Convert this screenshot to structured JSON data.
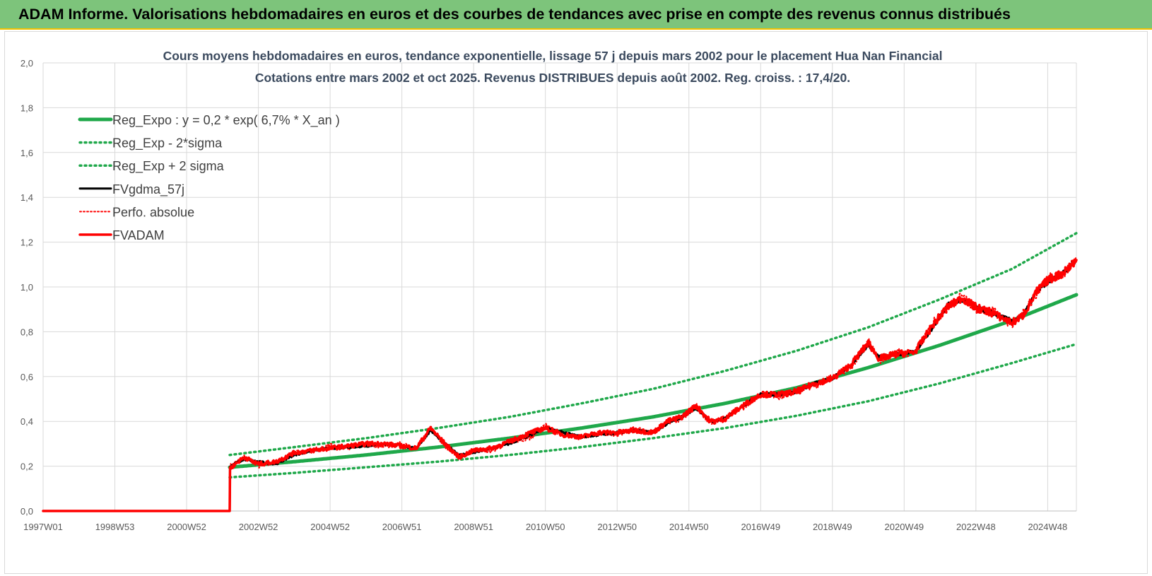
{
  "header": {
    "title": "ADAM Informe. Valorisations hebdomadaires en euros et des courbes de tendances avec prise en compte des revenus connus distribués"
  },
  "colors": {
    "header_bg": "#7dc47b",
    "header_border": "#f2c100",
    "trend_green": "#1fa84a",
    "band_green": "#1fa84a",
    "fvgdma_black": "#000000",
    "adam_red": "#ff0000"
  },
  "chart_data": {
    "type": "line",
    "title": "Cours moyens hebdomadaires en euros, tendance exponentielle, lissage 57 j depuis mars 2002 pour le placement Hua Nan Financial",
    "subtitle": "Cotations entre mars 2002 et oct 2025. Revenus DISTRIBUES depuis août 2002. Reg. croiss. : 17,4/20.",
    "xlabel": "",
    "ylabel": "",
    "x_range": [
      1997.0,
      2025.8
    ],
    "ylim": [
      0,
      2.0
    ],
    "y_ticks": [
      "0,0",
      "0,2",
      "0,4",
      "0,6",
      "0,8",
      "1,0",
      "1,2",
      "1,4",
      "1,6",
      "1,8",
      "2,0"
    ],
    "x_ticks": [
      {
        "x": 1997.0,
        "label": "1997W01"
      },
      {
        "x": 1999.0,
        "label": "1998W53"
      },
      {
        "x": 2001.0,
        "label": "2000W52"
      },
      {
        "x": 2003.0,
        "label": "2002W52"
      },
      {
        "x": 2005.0,
        "label": "2004W52"
      },
      {
        "x": 2007.0,
        "label": "2006W51"
      },
      {
        "x": 2009.0,
        "label": "2008W51"
      },
      {
        "x": 2011.0,
        "label": "2010W50"
      },
      {
        "x": 2013.0,
        "label": "2012W50"
      },
      {
        "x": 2015.0,
        "label": "2014W50"
      },
      {
        "x": 2017.0,
        "label": "2016W49"
      },
      {
        "x": 2019.0,
        "label": "2018W49"
      },
      {
        "x": 2021.0,
        "label": "2020W49"
      },
      {
        "x": 2023.0,
        "label": "2022W48"
      },
      {
        "x": 2025.0,
        "label": "2024W48"
      }
    ],
    "grid": true,
    "legend_position": "top-left",
    "series": [
      {
        "name": "Reg_Expo : y = 0,2 * exp( 6,7% *  X_an )",
        "style": "solid",
        "color": "#1fa84a",
        "points": [
          [
            2002.2,
            0.195
          ],
          [
            2004,
            0.22
          ],
          [
            2006,
            0.25
          ],
          [
            2008,
            0.285
          ],
          [
            2010,
            0.325
          ],
          [
            2012,
            0.37
          ],
          [
            2014,
            0.42
          ],
          [
            2016,
            0.48
          ],
          [
            2018,
            0.55
          ],
          [
            2020,
            0.64
          ],
          [
            2022,
            0.74
          ],
          [
            2024,
            0.85
          ],
          [
            2025.8,
            0.965
          ]
        ]
      },
      {
        "name": "Reg_Exp - 2*sigma",
        "style": "dotted",
        "color": "#1fa84a",
        "points": [
          [
            2002.2,
            0.15
          ],
          [
            2004,
            0.17
          ],
          [
            2006,
            0.195
          ],
          [
            2008,
            0.22
          ],
          [
            2010,
            0.25
          ],
          [
            2012,
            0.285
          ],
          [
            2014,
            0.325
          ],
          [
            2016,
            0.37
          ],
          [
            2018,
            0.425
          ],
          [
            2020,
            0.49
          ],
          [
            2022,
            0.57
          ],
          [
            2024,
            0.66
          ],
          [
            2025.8,
            0.745
          ]
        ]
      },
      {
        "name": "Reg_Exp + 2 sigma",
        "style": "dotted",
        "color": "#1fa84a",
        "points": [
          [
            2002.2,
            0.25
          ],
          [
            2004,
            0.285
          ],
          [
            2006,
            0.325
          ],
          [
            2008,
            0.37
          ],
          [
            2010,
            0.42
          ],
          [
            2012,
            0.48
          ],
          [
            2014,
            0.545
          ],
          [
            2016,
            0.625
          ],
          [
            2018,
            0.715
          ],
          [
            2020,
            0.82
          ],
          [
            2022,
            0.945
          ],
          [
            2024,
            1.08
          ],
          [
            2025.8,
            1.24
          ]
        ]
      },
      {
        "name": "FVgdma_57j",
        "style": "solid",
        "color": "#000000",
        "points": [
          [
            1997.0,
            0
          ],
          [
            2002.2,
            0
          ],
          [
            2002.21,
            0.2
          ],
          [
            2002.6,
            0.23
          ],
          [
            2003.0,
            0.22
          ],
          [
            2003.5,
            0.21
          ],
          [
            2004.0,
            0.25
          ],
          [
            2004.5,
            0.27
          ],
          [
            2005.0,
            0.28
          ],
          [
            2005.5,
            0.285
          ],
          [
            2006.0,
            0.29
          ],
          [
            2006.5,
            0.3
          ],
          [
            2007.0,
            0.29
          ],
          [
            2007.4,
            0.28
          ],
          [
            2007.8,
            0.36
          ],
          [
            2008.2,
            0.3
          ],
          [
            2008.6,
            0.25
          ],
          [
            2009.0,
            0.26
          ],
          [
            2009.5,
            0.28
          ],
          [
            2010.0,
            0.3
          ],
          [
            2010.6,
            0.34
          ],
          [
            2011.0,
            0.37
          ],
          [
            2011.5,
            0.35
          ],
          [
            2012.0,
            0.33
          ],
          [
            2012.5,
            0.34
          ],
          [
            2013.0,
            0.35
          ],
          [
            2013.5,
            0.36
          ],
          [
            2014.0,
            0.35
          ],
          [
            2014.4,
            0.39
          ],
          [
            2014.8,
            0.42
          ],
          [
            2015.2,
            0.46
          ],
          [
            2015.6,
            0.4
          ],
          [
            2016.0,
            0.41
          ],
          [
            2016.5,
            0.47
          ],
          [
            2017.0,
            0.52
          ],
          [
            2017.5,
            0.52
          ],
          [
            2018.0,
            0.53
          ],
          [
            2018.5,
            0.57
          ],
          [
            2019.0,
            0.59
          ],
          [
            2019.5,
            0.65
          ],
          [
            2020.0,
            0.74
          ],
          [
            2020.3,
            0.69
          ],
          [
            2020.8,
            0.7
          ],
          [
            2021.3,
            0.71
          ],
          [
            2021.8,
            0.82
          ],
          [
            2022.2,
            0.92
          ],
          [
            2022.6,
            0.94
          ],
          [
            2023.0,
            0.91
          ],
          [
            2023.5,
            0.88
          ],
          [
            2024.0,
            0.85
          ],
          [
            2024.3,
            0.87
          ],
          [
            2024.7,
            0.98
          ],
          [
            2025.0,
            1.02
          ],
          [
            2025.4,
            1.06
          ],
          [
            2025.8,
            1.12
          ]
        ]
      },
      {
        "name": "Perfo. absolue",
        "style": "dotted",
        "color": "#ff0000",
        "points": [
          [
            1997.0,
            0
          ],
          [
            2002.2,
            0
          ],
          [
            2002.21,
            0.2
          ],
          [
            2002.6,
            0.24
          ],
          [
            2003.0,
            0.2
          ],
          [
            2003.5,
            0.22
          ],
          [
            2004.0,
            0.26
          ],
          [
            2004.5,
            0.27
          ],
          [
            2005.0,
            0.29
          ],
          [
            2005.5,
            0.28
          ],
          [
            2006.0,
            0.3
          ],
          [
            2006.5,
            0.29
          ],
          [
            2007.0,
            0.3
          ],
          [
            2007.4,
            0.27
          ],
          [
            2007.8,
            0.37
          ],
          [
            2008.2,
            0.29
          ],
          [
            2008.6,
            0.24
          ],
          [
            2009.0,
            0.27
          ],
          [
            2009.5,
            0.27
          ],
          [
            2010.0,
            0.31
          ],
          [
            2010.6,
            0.33
          ],
          [
            2011.0,
            0.38
          ],
          [
            2011.5,
            0.34
          ],
          [
            2012.0,
            0.33
          ],
          [
            2012.5,
            0.35
          ],
          [
            2013.0,
            0.34
          ],
          [
            2013.5,
            0.37
          ],
          [
            2014.0,
            0.35
          ],
          [
            2014.4,
            0.4
          ],
          [
            2014.8,
            0.41
          ],
          [
            2015.2,
            0.47
          ],
          [
            2015.6,
            0.39
          ],
          [
            2016.0,
            0.42
          ],
          [
            2016.5,
            0.46
          ],
          [
            2017.0,
            0.53
          ],
          [
            2017.5,
            0.51
          ],
          [
            2018.0,
            0.54
          ],
          [
            2018.5,
            0.56
          ],
          [
            2019.0,
            0.6
          ],
          [
            2019.5,
            0.64
          ],
          [
            2020.0,
            0.76
          ],
          [
            2020.3,
            0.67
          ],
          [
            2020.8,
            0.71
          ],
          [
            2021.3,
            0.7
          ],
          [
            2021.8,
            0.84
          ],
          [
            2022.2,
            0.9
          ],
          [
            2022.6,
            0.96
          ],
          [
            2023.0,
            0.9
          ],
          [
            2023.5,
            0.89
          ],
          [
            2024.0,
            0.83
          ],
          [
            2024.3,
            0.88
          ],
          [
            2024.7,
            0.97
          ],
          [
            2025.0,
            1.04
          ],
          [
            2025.4,
            1.05
          ],
          [
            2025.8,
            1.13
          ]
        ]
      },
      {
        "name": "FVADAM",
        "style": "solid",
        "color": "#ff0000",
        "points": [
          [
            1997.0,
            0
          ],
          [
            2002.2,
            0
          ],
          [
            2002.21,
            0.19
          ],
          [
            2002.6,
            0.24
          ],
          [
            2003.0,
            0.21
          ],
          [
            2003.5,
            0.22
          ],
          [
            2004.0,
            0.26
          ],
          [
            2004.5,
            0.27
          ],
          [
            2005.0,
            0.28
          ],
          [
            2005.5,
            0.29
          ],
          [
            2006.0,
            0.3
          ],
          [
            2006.5,
            0.3
          ],
          [
            2007.0,
            0.29
          ],
          [
            2007.4,
            0.28
          ],
          [
            2007.8,
            0.37
          ],
          [
            2008.2,
            0.3
          ],
          [
            2008.6,
            0.24
          ],
          [
            2009.0,
            0.27
          ],
          [
            2009.5,
            0.28
          ],
          [
            2010.0,
            0.31
          ],
          [
            2010.6,
            0.35
          ],
          [
            2011.0,
            0.37
          ],
          [
            2011.5,
            0.34
          ],
          [
            2012.0,
            0.33
          ],
          [
            2012.5,
            0.35
          ],
          [
            2013.0,
            0.35
          ],
          [
            2013.5,
            0.36
          ],
          [
            2014.0,
            0.35
          ],
          [
            2014.4,
            0.4
          ],
          [
            2014.8,
            0.42
          ],
          [
            2015.2,
            0.47
          ],
          [
            2015.6,
            0.4
          ],
          [
            2016.0,
            0.41
          ],
          [
            2016.5,
            0.47
          ],
          [
            2017.0,
            0.52
          ],
          [
            2017.5,
            0.52
          ],
          [
            2018.0,
            0.53
          ],
          [
            2018.5,
            0.57
          ],
          [
            2019.0,
            0.59
          ],
          [
            2019.5,
            0.65
          ],
          [
            2020.0,
            0.75
          ],
          [
            2020.3,
            0.68
          ],
          [
            2020.8,
            0.7
          ],
          [
            2021.3,
            0.71
          ],
          [
            2021.8,
            0.83
          ],
          [
            2022.2,
            0.91
          ],
          [
            2022.6,
            0.95
          ],
          [
            2023.0,
            0.91
          ],
          [
            2023.5,
            0.88
          ],
          [
            2024.0,
            0.84
          ],
          [
            2024.3,
            0.87
          ],
          [
            2024.7,
            0.98
          ],
          [
            2025.0,
            1.03
          ],
          [
            2025.4,
            1.06
          ],
          [
            2025.8,
            1.12
          ]
        ]
      }
    ]
  }
}
